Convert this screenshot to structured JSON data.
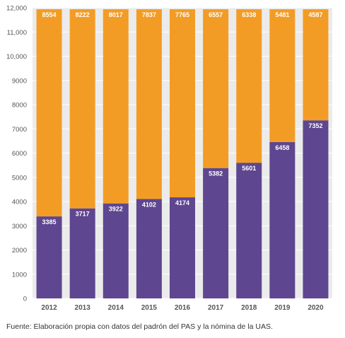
{
  "chart_data": {
    "type": "bar",
    "stacked": true,
    "categories": [
      "2012",
      "2013",
      "2014",
      "2015",
      "2016",
      "2017",
      "2018",
      "2019",
      "2020"
    ],
    "series": [
      {
        "values": [
          3385,
          3717,
          3922,
          4102,
          4174,
          5382,
          5601,
          6458,
          7352
        ],
        "color": "#5e4690"
      },
      {
        "values": [
          8554,
          8222,
          8017,
          7837,
          7765,
          6557,
          6338,
          5481,
          4587
        ],
        "color": "#f39c25"
      }
    ],
    "yticks": [
      "0",
      "1000",
      "2000",
      "3000",
      "4000",
      "5000",
      "6000",
      "7000",
      "8000",
      "9000",
      "10,000",
      "11,000",
      "12,000"
    ],
    "ylim": [
      0,
      12000
    ],
    "grid": true,
    "legend": "none"
  },
  "source": "Fuente: Elaboración propia con datos del padrón del PAS y la nómina de la UAS."
}
